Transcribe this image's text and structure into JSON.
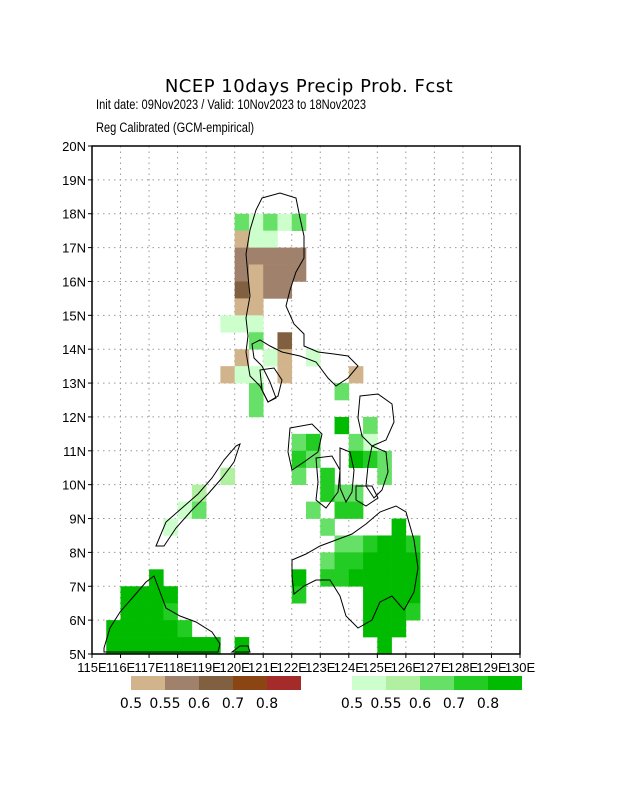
{
  "title": "NCEP 10days Precip Prob. Fcst",
  "subtitle_dates": "Init date: 09Nov2023 / Valid: 10Nov2023 to 18Nov2023",
  "subtitle_method": "Reg Calibrated (GCM-empirical)",
  "lat_labels": [
    "20N",
    "19N",
    "18N",
    "17N",
    "16N",
    "15N",
    "14N",
    "13N",
    "12N",
    "11N",
    "10N",
    "9N",
    "8N",
    "7N",
    "6N",
    "5N"
  ],
  "lon_labels": [
    "115E",
    "116E",
    "117E",
    "118E",
    "119E",
    "120E",
    "121E",
    "122E",
    "123E",
    "124E",
    "125E",
    "126E",
    "127E",
    "128E",
    "129E",
    "130E"
  ],
  "legend_dry": {
    "colors": [
      "#d2b48c",
      "#a0826c",
      "#806040",
      "#8b4513",
      "#a52a2a"
    ],
    "labels": [
      "0.5",
      "0.55",
      "0.6",
      "0.7",
      "0.8"
    ]
  },
  "legend_wet": {
    "colors": [
      "#ccffcc",
      "#b0f0a0",
      "#66e066",
      "#22cc22",
      "#00bb00"
    ],
    "labels": [
      "0.5",
      "0.55",
      "0.6",
      "0.7",
      "0.8"
    ]
  }
}
